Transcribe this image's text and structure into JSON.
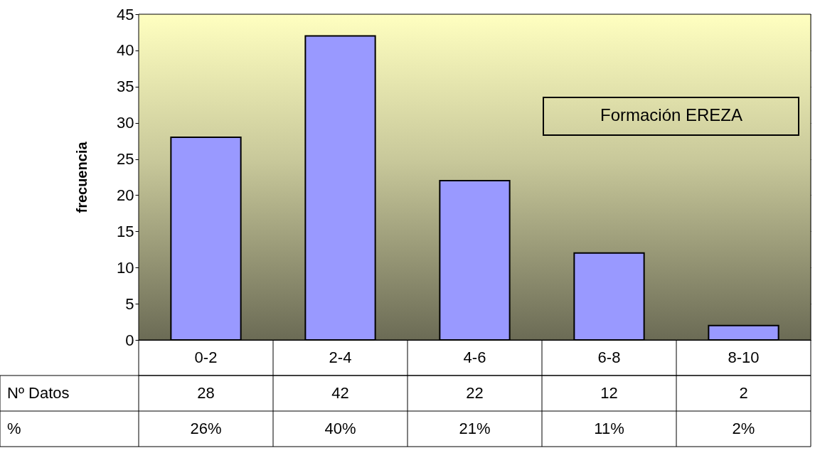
{
  "chart_data": {
    "type": "bar",
    "ylabel": "frecuencia",
    "categories": [
      "0-2",
      "2-4",
      "4-6",
      "6-8",
      "8-10"
    ],
    "values": [
      28,
      42,
      22,
      12,
      2
    ],
    "color": "#9999ff",
    "ylim": [
      0,
      45
    ],
    "yticks": [
      0,
      5,
      10,
      15,
      20,
      25,
      30,
      35,
      40,
      45
    ],
    "grid": "y",
    "data_labels": true,
    "annotations": [
      "Formación EREZA",
      "Nº Datos",
      "%",
      "26%",
      "40%",
      "21%",
      "11%",
      "2%"
    ]
  }
}
